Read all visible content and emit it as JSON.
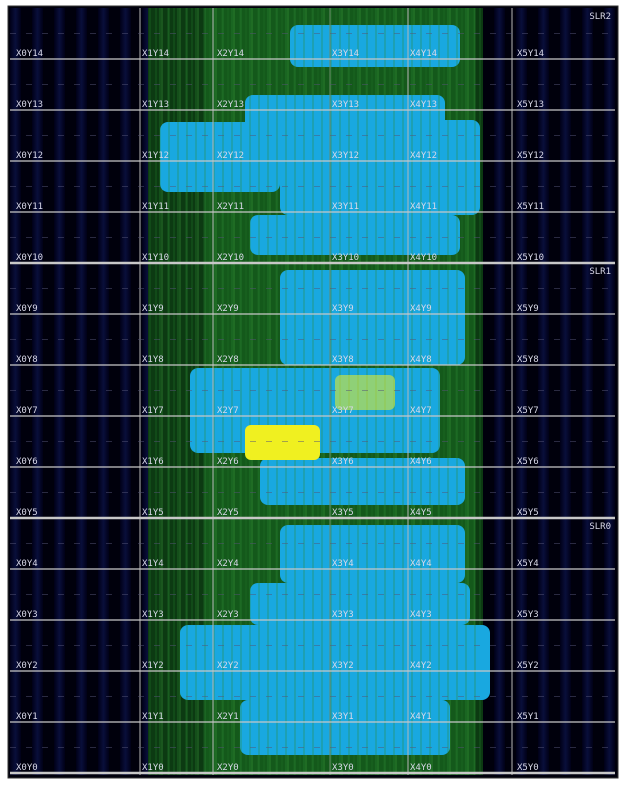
{
  "slr_labels": [
    "SLR2",
    "SLR1",
    "SLR0"
  ],
  "clock_regions": [
    [
      "X0Y14",
      "X1Y14",
      "X2Y14",
      "X3Y14",
      "X4Y14",
      "X5Y14"
    ],
    [
      "X0Y13",
      "X1Y13",
      "X2Y13",
      "X3Y13",
      "X4Y13",
      "X5Y13"
    ],
    [
      "X0Y12",
      "X1Y12",
      "X2Y12",
      "X3Y12",
      "X4Y12",
      "X5Y12"
    ],
    [
      "X0Y11",
      "X1Y11",
      "X2Y11",
      "X3Y11",
      "X4Y11",
      "X5Y11"
    ],
    [
      "X0Y10",
      "X1Y10",
      "X2Y10",
      "X3Y10",
      "X4Y10",
      "X5Y10"
    ],
    [
      "X0Y9",
      "X1Y9",
      "X2Y9",
      "X3Y9",
      "X4Y9",
      "X5Y9"
    ],
    [
      "X0Y8",
      "X1Y8",
      "X2Y8",
      "X3Y8",
      "X4Y8",
      "X5Y8"
    ],
    [
      "X0Y7",
      "X1Y7",
      "X2Y7",
      "X3Y7",
      "X4Y7",
      "X5Y7"
    ],
    [
      "X0Y6",
      "X1Y6",
      "X2Y6",
      "X3Y6",
      "X4Y6",
      "X5Y6"
    ],
    [
      "X0Y5",
      "X1Y5",
      "X2Y5",
      "X3Y5",
      "X4Y5",
      "X5Y5"
    ],
    [
      "X0Y4",
      "X1Y4",
      "X2Y4",
      "X3Y4",
      "X4Y4",
      "X5Y4"
    ],
    [
      "X0Y3",
      "X1Y3",
      "X2Y3",
      "X3Y3",
      "X4Y3",
      "X5Y3"
    ],
    [
      "X0Y2",
      "X1Y2",
      "X2Y2",
      "X3Y2",
      "X4Y2",
      "X5Y2"
    ],
    [
      "X0Y1",
      "X1Y1",
      "X2Y1",
      "X3Y1",
      "X4Y1",
      "X5Y1"
    ],
    [
      "X0Y0",
      "X1Y0",
      "X2Y0",
      "X3Y0",
      "X4Y0",
      "X5Y0"
    ]
  ]
}
